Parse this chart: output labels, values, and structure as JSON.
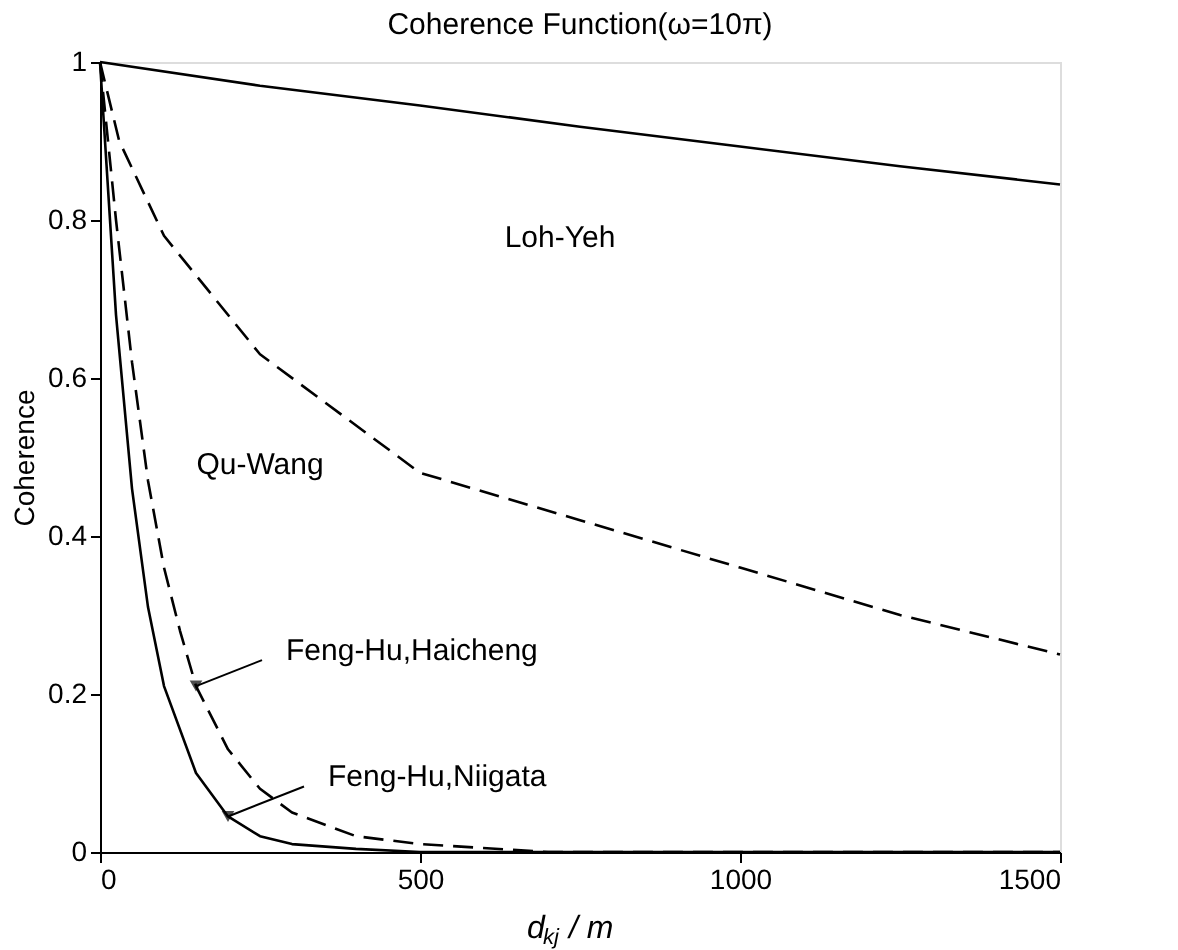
{
  "chart_data": {
    "type": "line",
    "title": "Coherence Function(ω=10π)",
    "xlabel": "d$_{kj}$ / m",
    "ylabel": "Coherence",
    "xlim": [
      0,
      1500
    ],
    "xticks": [
      0,
      500,
      1000,
      1500
    ],
    "ylim": [
      0,
      1
    ],
    "yticks": [
      0,
      0.2,
      0.4,
      0.6,
      0.8,
      1
    ],
    "grid": false,
    "legend": false,
    "marker": "none",
    "series": [
      {
        "name": "Loh-Yeh",
        "color": "#000000",
        "line_style": "solid",
        "x": [
          0,
          250,
          500,
          750,
          1000,
          1250,
          1500
        ],
        "values": [
          1,
          0.97,
          0.945,
          0.918,
          0.893,
          0.868,
          0.845
        ]
      },
      {
        "name": "Qu-Wang",
        "color": "#000000",
        "line_style": "dashed",
        "x": [
          0,
          30,
          100,
          250,
          500,
          750,
          1000,
          1250,
          1500
        ],
        "values": [
          1,
          0.9,
          0.78,
          0.63,
          0.48,
          0.42,
          0.36,
          0.3,
          0.25
        ]
      },
      {
        "name": "Feng-Hu,Haicheng",
        "color": "#000000",
        "line_style": "dashed",
        "x": [
          0,
          25,
          50,
          75,
          100,
          125,
          150,
          200,
          250,
          300,
          400,
          500,
          700,
          1500
        ],
        "values": [
          1,
          0.8,
          0.62,
          0.47,
          0.36,
          0.28,
          0.21,
          0.13,
          0.08,
          0.05,
          0.02,
          0.01,
          0,
          0
        ]
      },
      {
        "name": "Feng-Hu,Niigata",
        "color": "#000000",
        "line_style": "solid",
        "x": [
          0,
          25,
          50,
          75,
          100,
          150,
          200,
          250,
          300,
          400,
          500,
          1500
        ],
        "values": [
          1,
          0.68,
          0.46,
          0.31,
          0.21,
          0.1,
          0.045,
          0.02,
          0.01,
          0.004,
          0,
          0
        ]
      }
    ]
  }
}
